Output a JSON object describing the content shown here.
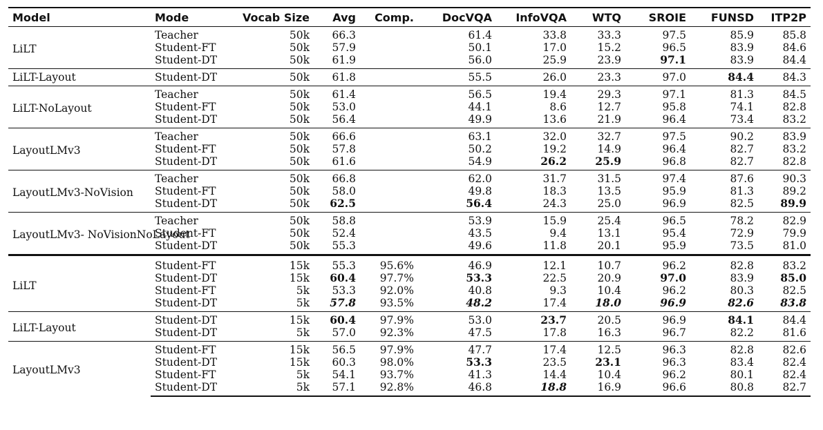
{
  "table": {
    "headers": [
      "Model",
      "Mode",
      "Vocab Size",
      "Avg",
      "Comp.",
      "DocVQA",
      "InfoVQA",
      "WTQ",
      "SROIE",
      "FUNSD",
      "ITP2P"
    ],
    "groups": [
      {
        "model": "LiLT",
        "rows": [
          [
            "Teacher",
            "50k",
            "66.3",
            "",
            "61.4",
            "33.8",
            "33.3",
            "97.5",
            "85.9",
            "85.8"
          ],
          [
            "Student-FT",
            "50k",
            "57.9",
            "",
            "50.1",
            "17.0",
            "15.2",
            "96.5",
            "83.9",
            "84.6"
          ],
          [
            "Student-DT",
            "50k",
            "61.9",
            "",
            "56.0",
            "25.9",
            "23.9",
            {
              "v": "97.1",
              "s": "b"
            },
            "83.9",
            "84.4"
          ]
        ]
      },
      {
        "model": "LiLT-Layout",
        "rows": [
          [
            "Student-DT",
            "50k",
            "61.8",
            "",
            "55.5",
            "26.0",
            "23.3",
            "97.0",
            {
              "v": "84.4",
              "s": "b"
            },
            "84.3"
          ]
        ]
      },
      {
        "model": "LiLT-NoLayout",
        "rows": [
          [
            "Teacher",
            "50k",
            "61.4",
            "",
            "56.5",
            "19.4",
            "29.3",
            "97.1",
            "81.3",
            "84.5"
          ],
          [
            "Student-FT",
            "50k",
            "53.0",
            "",
            "44.1",
            "8.6",
            "12.7",
            "95.8",
            "74.1",
            "82.8"
          ],
          [
            "Student-DT",
            "50k",
            "56.4",
            "",
            "49.9",
            "13.6",
            "21.9",
            "96.4",
            "73.4",
            "83.2"
          ]
        ]
      },
      {
        "model": "LayoutLMv3",
        "rows": [
          [
            "Teacher",
            "50k",
            "66.6",
            "",
            "63.1",
            "32.0",
            "32.7",
            "97.5",
            "90.2",
            "83.9"
          ],
          [
            "Student-FT",
            "50k",
            "57.8",
            "",
            "50.2",
            "19.2",
            "14.9",
            "96.4",
            "82.7",
            "83.2"
          ],
          [
            "Student-DT",
            "50k",
            "61.6",
            "",
            "54.9",
            {
              "v": "26.2",
              "s": "b"
            },
            {
              "v": "25.9",
              "s": "b"
            },
            "96.8",
            "82.7",
            "82.8"
          ]
        ]
      },
      {
        "model": "LayoutLMv3-NoVision",
        "rows": [
          [
            "Teacher",
            "50k",
            "66.8",
            "",
            "62.0",
            "31.7",
            "31.5",
            "97.4",
            "87.6",
            "90.3"
          ],
          [
            "Student-FT",
            "50k",
            "58.0",
            "",
            "49.8",
            "18.3",
            "13.5",
            "95.9",
            "81.3",
            "89.2"
          ],
          [
            "Student-DT",
            "50k",
            {
              "v": "62.5",
              "s": "b"
            },
            "",
            {
              "v": "56.4",
              "s": "b"
            },
            "24.3",
            "25.0",
            "96.9",
            "82.5",
            {
              "v": "89.9",
              "s": "b"
            }
          ]
        ]
      },
      {
        "model": "LayoutLMv3- NoVisionNoLayout",
        "rows": [
          [
            "Teacher",
            "50k",
            "58.8",
            "",
            "53.9",
            "15.9",
            "25.4",
            "96.5",
            "78.2",
            "82.9"
          ],
          [
            "Student-FT",
            "50k",
            "52.4",
            "",
            "43.5",
            "9.4",
            "13.1",
            "95.4",
            "72.9",
            "79.9"
          ],
          [
            "Student-DT",
            "50k",
            "55.3",
            "",
            "49.6",
            "11.8",
            "20.1",
            "95.9",
            "73.5",
            "81.0"
          ]
        ]
      },
      {
        "model": "LiLT",
        "thick": true,
        "rows": [
          [
            "Student-FT",
            "15k",
            "55.3",
            "95.6%",
            "46.9",
            "12.1",
            "10.7",
            "96.2",
            "82.8",
            "83.2"
          ],
          [
            "Student-DT",
            "15k",
            {
              "v": "60.4",
              "s": "b"
            },
            "97.7%",
            {
              "v": "53.3",
              "s": "b"
            },
            "22.5",
            "20.9",
            {
              "v": "97.0",
              "s": "b"
            },
            "83.9",
            {
              "v": "85.0",
              "s": "b"
            }
          ],
          [
            "Student-FT",
            "5k",
            "53.3",
            "92.0%",
            "40.8",
            "9.3",
            "10.4",
            "96.2",
            "80.3",
            "82.5"
          ],
          [
            "Student-DT",
            "5k",
            {
              "v": "57.8",
              "s": "bi"
            },
            "93.5%",
            {
              "v": "48.2",
              "s": "bi"
            },
            "17.4",
            {
              "v": "18.0",
              "s": "bi"
            },
            {
              "v": "96.9",
              "s": "bi"
            },
            {
              "v": "82.6",
              "s": "bi"
            },
            {
              "v": "83.8",
              "s": "bi"
            }
          ]
        ]
      },
      {
        "model": "LiLT-Layout",
        "rows": [
          [
            "Student-DT",
            "15k",
            {
              "v": "60.4",
              "s": "b"
            },
            "97.9%",
            "53.0",
            {
              "v": "23.7",
              "s": "b"
            },
            "20.5",
            "96.9",
            {
              "v": "84.1",
              "s": "b"
            },
            "84.4"
          ],
          [
            "Student-DT",
            "5k",
            "57.0",
            "92.3%",
            "47.5",
            "17.8",
            "16.3",
            "96.7",
            "82.2",
            "81.6"
          ]
        ]
      },
      {
        "model": "LayoutLMv3",
        "rows": [
          [
            "Student-FT",
            "15k",
            "56.5",
            "97.9%",
            "47.7",
            "17.4",
            "12.5",
            "96.3",
            "82.8",
            "82.6"
          ],
          [
            "Student-DT",
            "15k",
            "60.3",
            "98.0%",
            {
              "v": "53.3",
              "s": "b"
            },
            "23.5",
            {
              "v": "23.1",
              "s": "b"
            },
            "96.3",
            "83.4",
            "82.4"
          ],
          [
            "Student-FT",
            "5k",
            "54.1",
            "93.7%",
            "41.3",
            "14.4",
            "10.4",
            "96.2",
            "80.1",
            "82.4"
          ],
          [
            "Student-DT",
            "5k",
            "57.1",
            "92.8%",
            "46.8",
            {
              "v": "18.8",
              "s": "bi"
            },
            "16.9",
            "96.6",
            "80.8",
            "82.7"
          ]
        ]
      }
    ]
  }
}
